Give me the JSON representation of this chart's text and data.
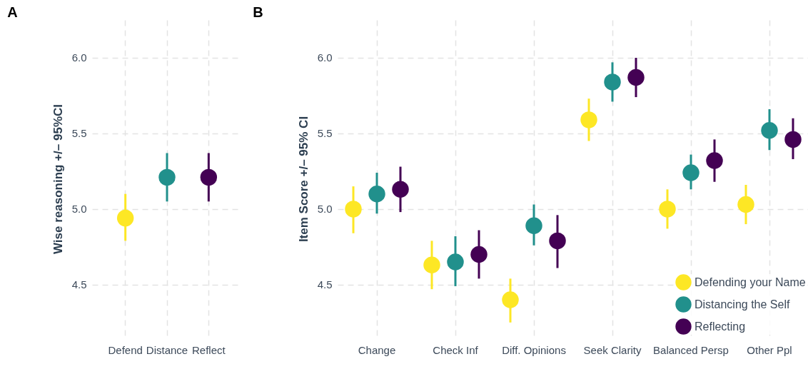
{
  "chart_data": [
    {
      "type": "scatter",
      "title": "A",
      "ylabel": "Wise reasoning +/– 95%CI",
      "categories": [
        "Defend",
        "Distance",
        "Reflect"
      ],
      "values": [
        4.94,
        5.21,
        5.21
      ],
      "errors": [
        [
          4.79,
          5.1
        ],
        [
          5.05,
          5.37
        ],
        [
          5.05,
          5.37
        ]
      ],
      "colors": [
        "#fde725",
        "#21908c",
        "#440154"
      ],
      "ylim": [
        4.15,
        6.25
      ],
      "yticks": [
        {
          "value": 4.5,
          "label": "4.5"
        },
        {
          "value": 5,
          "label": "5.0"
        },
        {
          "value": 5.5,
          "label": "5.5"
        },
        {
          "value": 6,
          "label": "6.0"
        }
      ],
      "grid": true,
      "marker": "circle",
      "legend": false
    },
    {
      "type": "scatter",
      "title": "B",
      "ylabel": "Item Score +/– 95% CI",
      "categories": [
        "Change",
        "Check Inf",
        "Diff. Opinions",
        "Seek Clarity",
        "Balanced Persp",
        "Other Ppl"
      ],
      "series": [
        {
          "name": "Defending your Name",
          "color": "#fde725",
          "values": [
            5.0,
            4.63,
            4.4,
            5.59,
            5.0,
            5.03
          ],
          "errors": [
            [
              4.84,
              5.15
            ],
            [
              4.47,
              4.79
            ],
            [
              4.25,
              4.54
            ],
            [
              5.45,
              5.73
            ],
            [
              4.87,
              5.13
            ],
            [
              4.9,
              5.16
            ]
          ]
        },
        {
          "name": "Distancing the Self",
          "color": "#21908c",
          "values": [
            5.1,
            4.65,
            4.89,
            5.84,
            5.24,
            5.52
          ],
          "errors": [
            [
              4.97,
              5.24
            ],
            [
              4.49,
              4.82
            ],
            [
              4.76,
              5.03
            ],
            [
              5.71,
              5.97
            ],
            [
              5.13,
              5.36
            ],
            [
              5.39,
              5.66
            ]
          ]
        },
        {
          "name": "Reflecting",
          "color": "#440154",
          "values": [
            5.13,
            4.7,
            4.79,
            5.87,
            5.32,
            5.46
          ],
          "errors": [
            [
              4.98,
              5.28
            ],
            [
              4.54,
              4.86
            ],
            [
              4.61,
              4.96
            ],
            [
              5.74,
              6.0
            ],
            [
              5.18,
              5.46
            ],
            [
              5.33,
              5.6
            ]
          ]
        }
      ],
      "ylim": [
        4.15,
        6.25
      ],
      "yticks": [
        {
          "value": 4.5,
          "label": "4.5"
        },
        {
          "value": 5,
          "label": "5.0"
        },
        {
          "value": 5.5,
          "label": "5.5"
        },
        {
          "value": 6,
          "label": "6.0"
        }
      ],
      "grid": true,
      "marker": "circle",
      "legend": "bottom right"
    }
  ]
}
